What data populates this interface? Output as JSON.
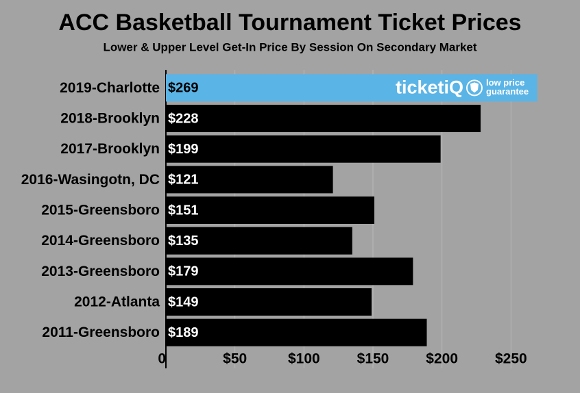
{
  "chart_data": {
    "type": "hbar",
    "title": "ACC Basketball Tournament Ticket Prices",
    "subtitle": "Lower & Upper Level Get-In Price By Session On Secondary Market",
    "categories": [
      "2019-Charlotte",
      "2018-Brooklyn",
      "2017-Brooklyn",
      "2016-Wasingotn, DC",
      "2015-Greensboro",
      "2014-Greensboro",
      "2013-Greensboro",
      "2012-Atlanta",
      "2011-Greensboro"
    ],
    "values": [
      269,
      228,
      199,
      121,
      151,
      135,
      179,
      149,
      189
    ],
    "value_labels": [
      "$269",
      "$228",
      "$199",
      "$121",
      "$151",
      "$135",
      "$179",
      "$149",
      "$189"
    ],
    "colors": [
      "#5ab4e6",
      "#000000",
      "#000000",
      "#000000",
      "#000000",
      "#000000",
      "#000000",
      "#000000",
      "#000000"
    ],
    "xlim": [
      0,
      300
    ],
    "xticks": [
      0,
      {
        "value": 50,
        "label": "$50"
      },
      {
        "value": 100,
        "label": "$100"
      },
      {
        "value": 150,
        "label": "$150"
      },
      {
        "value": 200,
        "label": "$200"
      },
      {
        "value": 250,
        "label": "$250"
      }
    ],
    "grid": true,
    "logo": {
      "brand": "ticketiQ",
      "tagline": [
        "low price",
        "guarantee"
      ]
    }
  }
}
